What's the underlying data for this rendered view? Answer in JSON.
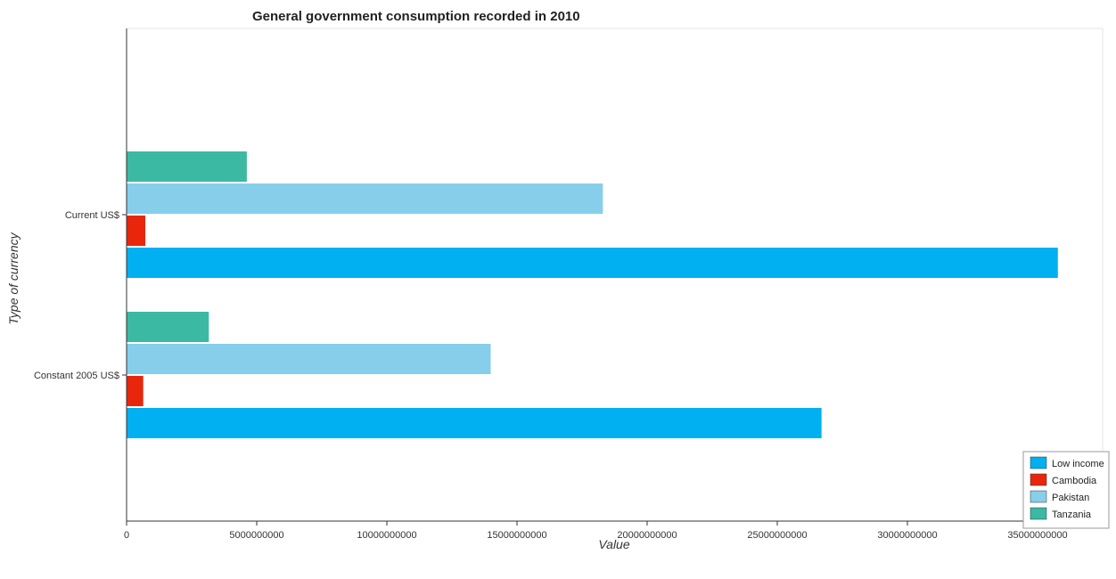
{
  "chart_data": {
    "type": "bar",
    "orientation": "horizontal",
    "title": "General government consumption recorded in 2010",
    "xlabel": "Value",
    "ylabel": "Type of currency",
    "categories": [
      "Constant 2005 US$",
      "Current US$"
    ],
    "series": [
      {
        "name": "Low income",
        "color": "#00b0f0",
        "values": [
          26700000000,
          35780000000
        ]
      },
      {
        "name": "Cambodia",
        "color": "#e8260c",
        "values": [
          640000000,
          720000000
        ]
      },
      {
        "name": "Pakistan",
        "color": "#87ceeb",
        "values": [
          13990000000,
          18300000000
        ]
      },
      {
        "name": "Tanzania",
        "color": "#3cb9a2",
        "values": [
          3160000000,
          4620000000
        ]
      }
    ],
    "xlim": [
      0,
      37500000000
    ],
    "xticks": [
      0,
      5000000000,
      10000000000,
      15000000000,
      20000000000,
      25000000000,
      30000000000,
      35000000000
    ],
    "xtick_labels": [
      "0",
      "5000000000",
      "10000000000",
      "15000000000",
      "20000000000",
      "25000000000",
      "30000000000",
      "35000000000"
    ],
    "grid": false,
    "legend_position": "bottom-right"
  }
}
